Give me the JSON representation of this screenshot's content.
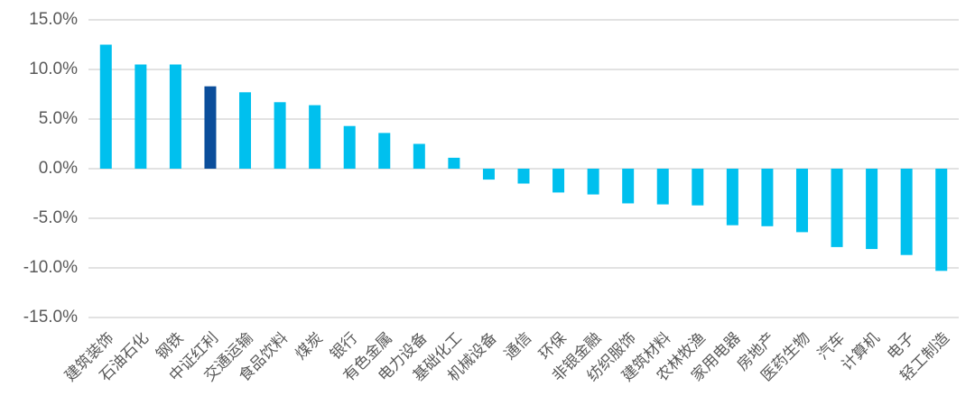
{
  "chart_data": {
    "type": "bar",
    "categories": [
      "建筑装饰",
      "石油石化",
      "钢铁",
      "中证红利",
      "交通运输",
      "食品饮料",
      "煤炭",
      "银行",
      "有色金属",
      "电力设备",
      "基础化工",
      "机械设备",
      "通信",
      "环保",
      "非银金融",
      "纺织服饰",
      "建筑材料",
      "农林牧渔",
      "家用电器",
      "房地产",
      "医药生物",
      "汽车",
      "计算机",
      "电子",
      "轻工制造"
    ],
    "values": [
      12.5,
      10.5,
      10.5,
      8.3,
      7.7,
      6.7,
      6.4,
      4.3,
      3.6,
      2.5,
      1.1,
      -1.1,
      -1.5,
      -2.4,
      -2.6,
      -3.5,
      -3.6,
      -3.7,
      -5.7,
      -5.8,
      -6.4,
      -7.9,
      -8.1,
      -8.7,
      -10.3
    ],
    "colors": [
      "#00c0ee",
      "#00c0ee",
      "#00c0ee",
      "#0b4e9b",
      "#00c0ee",
      "#00c0ee",
      "#00c0ee",
      "#00c0ee",
      "#00c0ee",
      "#00c0ee",
      "#00c0ee",
      "#00c0ee",
      "#00c0ee",
      "#00c0ee",
      "#00c0ee",
      "#00c0ee",
      "#00c0ee",
      "#00c0ee",
      "#00c0ee",
      "#00c0ee",
      "#00c0ee",
      "#00c0ee",
      "#00c0ee",
      "#00c0ee",
      "#00c0ee"
    ],
    "ylim": [
      -15,
      15
    ],
    "yticks": [
      {
        "value": -15,
        "label": "-15.0%"
      },
      {
        "value": -10,
        "label": "-10.0%"
      },
      {
        "value": -5,
        "label": "-5.0%"
      },
      {
        "value": 0,
        "label": "0.0%"
      },
      {
        "value": 5,
        "label": "5.0%"
      },
      {
        "value": 10,
        "label": "10.0%"
      },
      {
        "value": 15,
        "label": "15.0%"
      }
    ],
    "grid": true
  }
}
